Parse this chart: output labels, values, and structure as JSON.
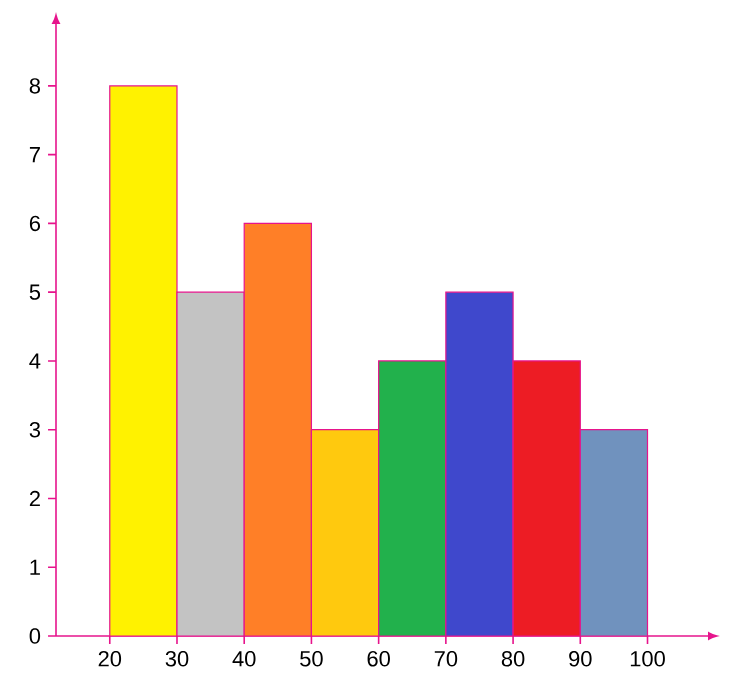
{
  "chart_data": {
    "type": "histogram",
    "bins": [
      20,
      30,
      40,
      50,
      60,
      70,
      80,
      90,
      100
    ],
    "values": [
      8,
      5,
      6,
      3,
      4,
      5,
      4,
      3
    ],
    "colors": [
      "#fff200",
      "#c3c3c3",
      "#ff7f27",
      "#ffc90e",
      "#22b14c",
      "#3f48cc",
      "#ed1c24",
      "#7092be"
    ],
    "xlim": [
      12,
      109
    ],
    "ylim": [
      0,
      8.9
    ],
    "xticks": [
      20,
      30,
      40,
      50,
      60,
      70,
      80,
      90,
      100
    ],
    "yticks": [
      0,
      1,
      2,
      3,
      4,
      5,
      6,
      7,
      8
    ],
    "grid": false
  }
}
